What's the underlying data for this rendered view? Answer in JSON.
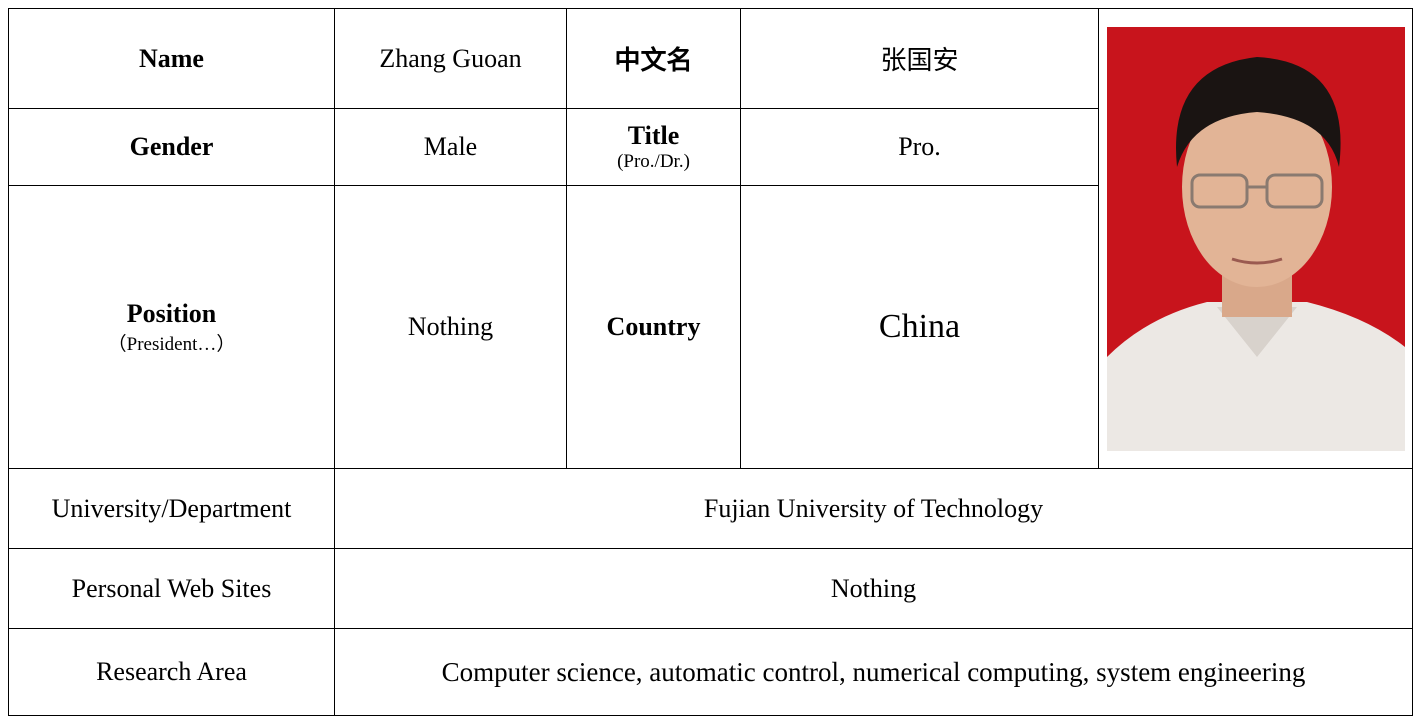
{
  "profile": {
    "name_label": "Name",
    "name": "Zhang Guoan",
    "chinese_name_label": "中文名",
    "chinese_name": "张国安",
    "gender_label": "Gender",
    "gender": "Male",
    "title_label": "Title",
    "title_hint": "(Pro./Dr.)",
    "title": "Pro.",
    "position_label": "Position",
    "position_hint": "（President…）",
    "position": "Nothing",
    "country_label": "Country",
    "country": "China"
  },
  "details": [
    {
      "label": "University/Department",
      "value": "Fujian University of Technology"
    },
    {
      "label": "Personal Web Sites",
      "value": "Nothing"
    },
    {
      "label": "Research Area",
      "value": "Computer science, automatic control, numerical computing, system engineering"
    }
  ]
}
